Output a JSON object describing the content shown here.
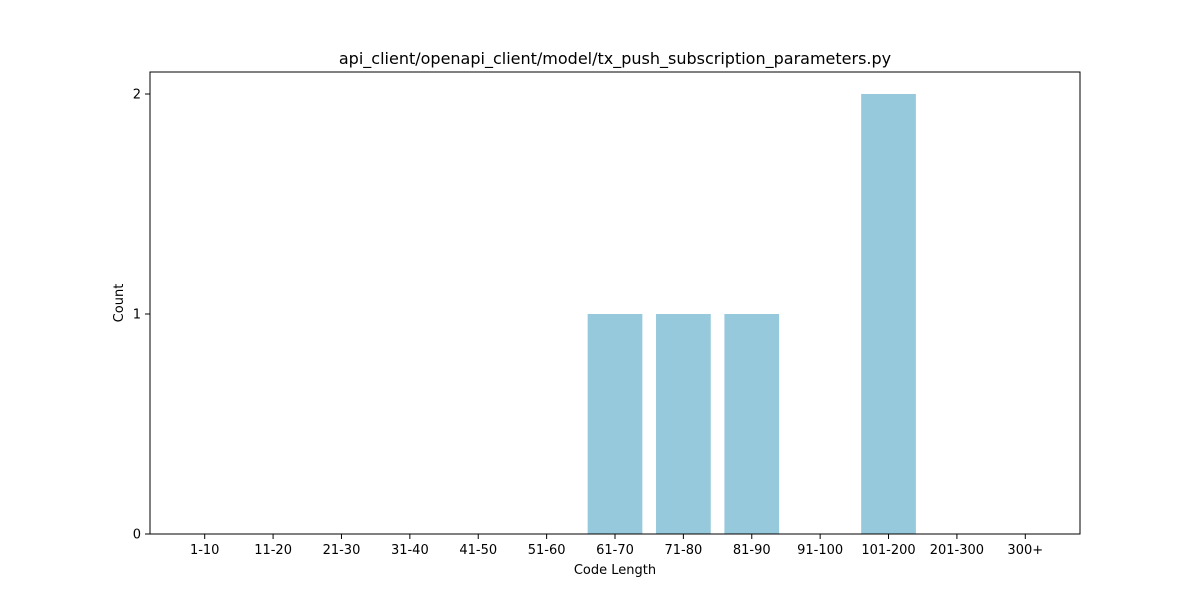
{
  "chart_data": {
    "type": "bar",
    "title": "api_client/openapi_client/model/tx_push_subscription_parameters.py",
    "xlabel": "Code Length",
    "ylabel": "Count",
    "categories": [
      "1-10",
      "11-20",
      "21-30",
      "31-40",
      "41-50",
      "51-60",
      "61-70",
      "71-80",
      "81-90",
      "91-100",
      "101-200",
      "201-300",
      "300+"
    ],
    "values": [
      0,
      0,
      0,
      0,
      0,
      0,
      1,
      1,
      1,
      0,
      2,
      0,
      0
    ],
    "yticks": [
      0,
      1,
      2
    ],
    "ylim": [
      0,
      2.1
    ],
    "grid": false,
    "legend": "none",
    "bar_color": "#96c9dc"
  }
}
